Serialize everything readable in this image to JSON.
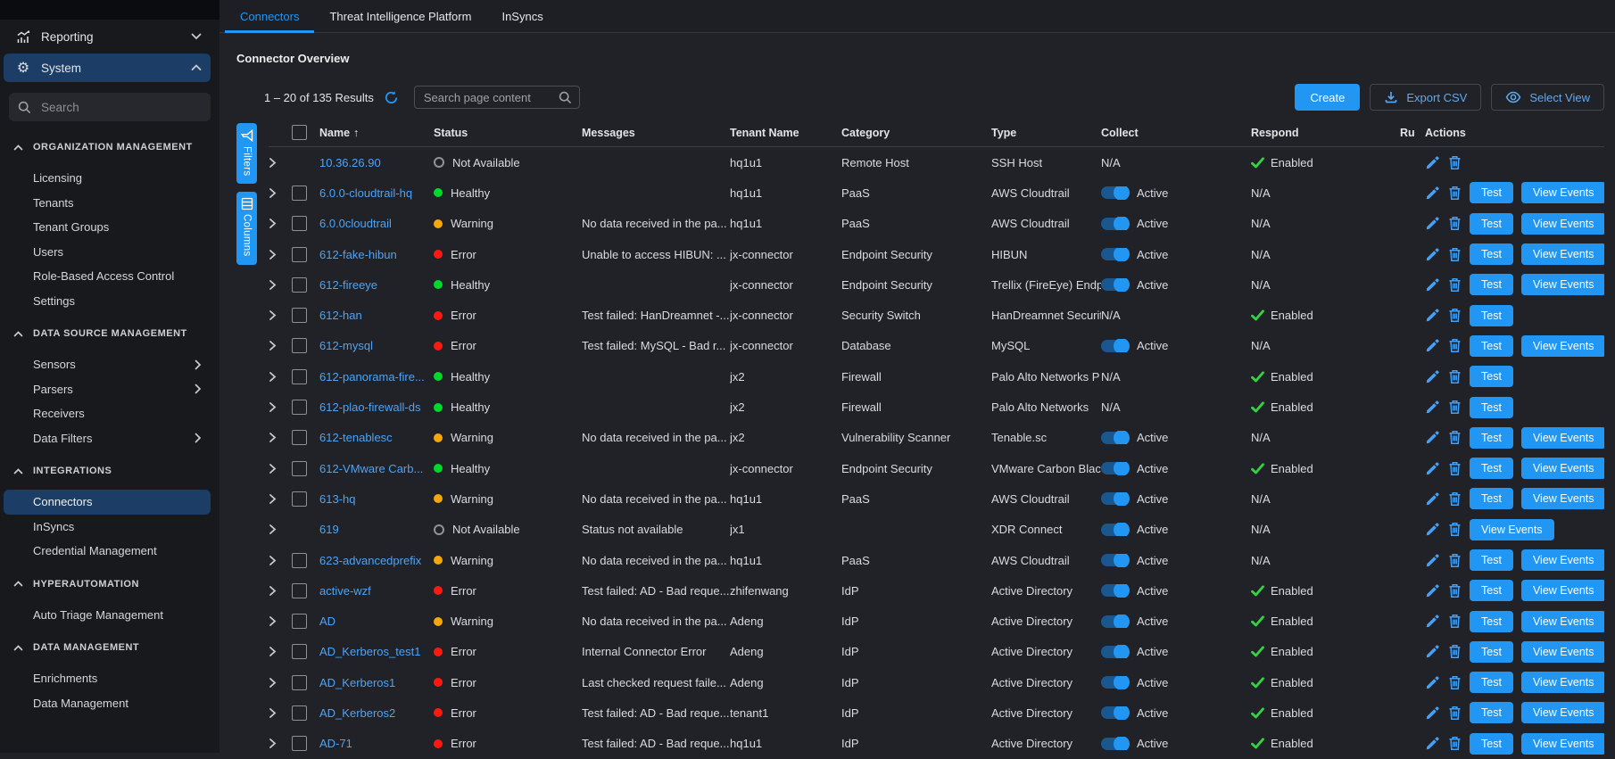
{
  "sidebar": {
    "search_placeholder": "Search",
    "top_items": [
      {
        "label": "Reporting",
        "icon": "chart",
        "chevron": "down",
        "selected": false
      },
      {
        "label": "System",
        "icon": "gear",
        "chevron": "up",
        "selected": true
      }
    ],
    "sections": [
      {
        "title": "ORGANIZATION MANAGEMENT",
        "items": [
          {
            "label": "Licensing"
          },
          {
            "label": "Tenants"
          },
          {
            "label": "Tenant Groups"
          },
          {
            "label": "Users"
          },
          {
            "label": "Role-Based Access Control"
          },
          {
            "label": "Settings"
          }
        ]
      },
      {
        "title": "DATA SOURCE MANAGEMENT",
        "items": [
          {
            "label": "Sensors",
            "expandable": true
          },
          {
            "label": "Parsers",
            "expandable": true
          },
          {
            "label": "Receivers"
          },
          {
            "label": "Data Filters",
            "expandable": true
          }
        ]
      },
      {
        "title": "INTEGRATIONS",
        "items": [
          {
            "label": "Connectors",
            "selected": true
          },
          {
            "label": "InSyncs"
          },
          {
            "label": "Credential Management"
          }
        ]
      },
      {
        "title": "HYPERAUTOMATION",
        "items": [
          {
            "label": "Auto Triage Management"
          }
        ]
      },
      {
        "title": "DATA MANAGEMENT",
        "items": [
          {
            "label": "Enrichments"
          },
          {
            "label": "Data Management"
          }
        ]
      }
    ]
  },
  "tabs": [
    {
      "label": "Connectors",
      "active": true
    },
    {
      "label": "Threat Intelligence Platform",
      "active": false
    },
    {
      "label": "InSyncs",
      "active": false
    }
  ],
  "page": {
    "title": "Connector Overview",
    "results": "1 – 20 of 135 Results",
    "search_placeholder": "Search page content"
  },
  "toolbar": {
    "create": "Create",
    "export_csv": "Export CSV",
    "select_view": "Select View"
  },
  "rail": {
    "filters": "Filters",
    "columns": "Columns"
  },
  "colors": {
    "accent": "#2196f3",
    "healthy": "#00d92b",
    "warning": "#f3a70c",
    "error": "#fb1a12",
    "enabled_check": "#35d343",
    "selected_nav": "#1c3e66"
  },
  "table": {
    "sort_column": "Name",
    "sort_arrow": "↑",
    "columns": [
      "Name",
      "Status",
      "Messages",
      "Tenant Name",
      "Category",
      "Type",
      "Collect",
      "Respond",
      "Ru",
      "Actions"
    ],
    "collect_active_label": "Active",
    "na_label": "N/A",
    "respond_enabled_label": "Enabled",
    "actions_labels": {
      "test": "Test",
      "view_events": "View Events"
    },
    "rows": [
      {
        "name": "10.36.26.90",
        "status": "Not Available",
        "message": "",
        "tenant": "hq1u1",
        "category": "Remote Host",
        "type": "SSH Host",
        "collect": "N/A",
        "respond": "Enabled",
        "checkbox": false,
        "test": false,
        "view_events": false
      },
      {
        "name": "6.0.0-cloudtrail-hq",
        "status": "Healthy",
        "message": "",
        "tenant": "hq1u1",
        "category": "PaaS",
        "type": "AWS Cloudtrail",
        "collect": "Active",
        "respond": "N/A",
        "checkbox": true,
        "test": true,
        "view_events": true
      },
      {
        "name": "6.0.0cloudtrail",
        "status": "Warning",
        "message": "No data received in the pa...",
        "tenant": "hq1u1",
        "category": "PaaS",
        "type": "AWS Cloudtrail",
        "collect": "Active",
        "respond": "N/A",
        "checkbox": true,
        "test": true,
        "view_events": true
      },
      {
        "name": "612-fake-hibun",
        "status": "Error",
        "message": "Unable to access HIBUN: ...",
        "tenant": "jx-connector",
        "category": "Endpoint Security",
        "type": "HIBUN",
        "collect": "Active",
        "respond": "N/A",
        "checkbox": true,
        "test": true,
        "view_events": true
      },
      {
        "name": "612-fireeye",
        "status": "Healthy",
        "message": "",
        "tenant": "jx-connector",
        "category": "Endpoint Security",
        "type": "Trellix (FireEye) Endp",
        "collect": "Active",
        "respond": "N/A",
        "checkbox": true,
        "test": true,
        "view_events": true
      },
      {
        "name": "612-han",
        "status": "Error",
        "message": "Test failed: HanDreamnet -...",
        "tenant": "jx-connector",
        "category": "Security Switch",
        "type": "HanDreamnet Securit",
        "collect": "N/A",
        "respond": "Enabled",
        "checkbox": true,
        "test": true,
        "view_events": false
      },
      {
        "name": "612-mysql",
        "status": "Error",
        "message": "Test failed: MySQL - Bad r...",
        "tenant": "jx-connector",
        "category": "Database",
        "type": "MySQL",
        "collect": "Active",
        "respond": "N/A",
        "checkbox": true,
        "test": true,
        "view_events": true
      },
      {
        "name": "612-panorama-fire...",
        "status": "Healthy",
        "message": "",
        "tenant": "jx2",
        "category": "Firewall",
        "type": "Palo Alto Networks P",
        "collect": "N/A",
        "respond": "Enabled",
        "checkbox": true,
        "test": true,
        "view_events": false
      },
      {
        "name": "612-plao-firewall-ds",
        "status": "Healthy",
        "message": "",
        "tenant": "jx2",
        "category": "Firewall",
        "type": "Palo Alto Networks",
        "collect": "N/A",
        "respond": "Enabled",
        "checkbox": true,
        "test": true,
        "view_events": false
      },
      {
        "name": "612-tenablesc",
        "status": "Warning",
        "message": "No data received in the pa...",
        "tenant": "jx2",
        "category": "Vulnerability Scanner",
        "type": "Tenable.sc",
        "collect": "Active",
        "respond": "N/A",
        "checkbox": true,
        "test": true,
        "view_events": true
      },
      {
        "name": "612-VMware Carb...",
        "status": "Healthy",
        "message": "",
        "tenant": "jx-connector",
        "category": "Endpoint Security",
        "type": "VMware Carbon Blac",
        "collect": "Active",
        "respond": "Enabled",
        "checkbox": true,
        "test": true,
        "view_events": true
      },
      {
        "name": "613-hq",
        "status": "Warning",
        "message": "No data received in the pa...",
        "tenant": "hq1u1",
        "category": "PaaS",
        "type": "AWS Cloudtrail",
        "collect": "Active",
        "respond": "N/A",
        "checkbox": true,
        "test": true,
        "view_events": true
      },
      {
        "name": "619",
        "status": "Not Available",
        "message": "Status not available",
        "tenant": "jx1",
        "category": "",
        "type": "XDR Connect",
        "collect": "Active",
        "respond": "N/A",
        "checkbox": false,
        "test": false,
        "view_events": true
      },
      {
        "name": "623-advancedprefix",
        "status": "Warning",
        "message": "No data received in the pa...",
        "tenant": "hq1u1",
        "category": "PaaS",
        "type": "AWS Cloudtrail",
        "collect": "Active",
        "respond": "N/A",
        "checkbox": true,
        "test": true,
        "view_events": true
      },
      {
        "name": "active-wzf",
        "status": "Error",
        "message": "Test failed: AD - Bad reque...",
        "tenant": "zhifenwang",
        "category": "IdP",
        "type": "Active Directory",
        "collect": "Active",
        "respond": "Enabled",
        "checkbox": true,
        "test": true,
        "view_events": true
      },
      {
        "name": "AD",
        "status": "Warning",
        "message": "No data received in the pa...",
        "tenant": "Adeng",
        "category": "IdP",
        "type": "Active Directory",
        "collect": "Active",
        "respond": "Enabled",
        "checkbox": true,
        "test": true,
        "view_events": true
      },
      {
        "name": "AD_Kerberos_test1",
        "status": "Error",
        "message": "Internal Connector Error",
        "tenant": "Adeng",
        "category": "IdP",
        "type": "Active Directory",
        "collect": "Active",
        "respond": "Enabled",
        "checkbox": true,
        "test": true,
        "view_events": true
      },
      {
        "name": "AD_Kerberos1",
        "status": "Error",
        "message": "Last checked request faile...",
        "tenant": "Adeng",
        "category": "IdP",
        "type": "Active Directory",
        "collect": "Active",
        "respond": "Enabled",
        "checkbox": true,
        "test": true,
        "view_events": true
      },
      {
        "name": "AD_Kerberos2",
        "status": "Error",
        "message": "Test failed: AD - Bad reque...",
        "tenant": "tenant1",
        "category": "IdP",
        "type": "Active Directory",
        "collect": "Active",
        "respond": "Enabled",
        "checkbox": true,
        "test": true,
        "view_events": true
      },
      {
        "name": "AD-71",
        "status": "Error",
        "message": "Test failed: AD - Bad reque...",
        "tenant": "hq1u1",
        "category": "IdP",
        "type": "Active Directory",
        "collect": "Active",
        "respond": "Enabled",
        "checkbox": true,
        "test": true,
        "view_events": true
      }
    ]
  }
}
